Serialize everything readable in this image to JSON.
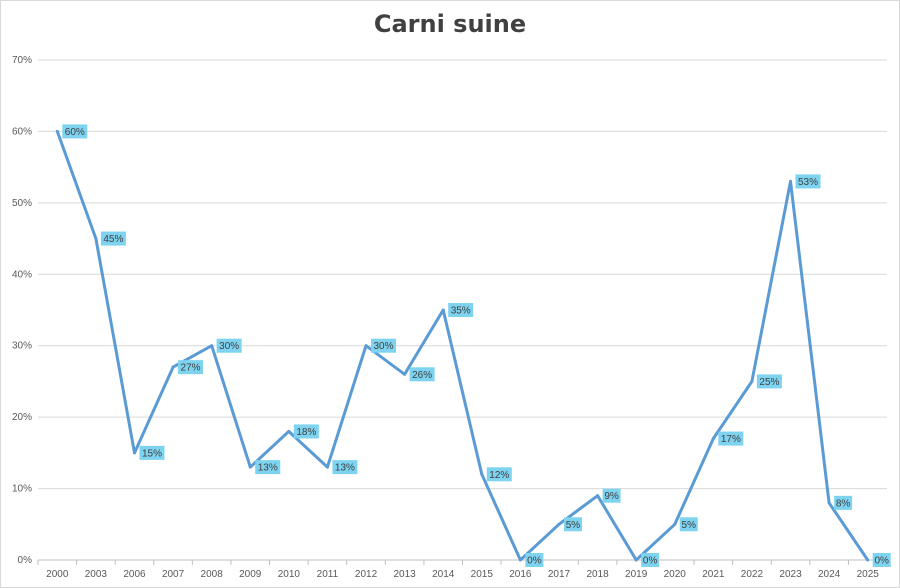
{
  "chart_data": {
    "type": "line",
    "title": "Carni suine",
    "xlabel": "",
    "ylabel": "",
    "ylim": [
      0,
      70
    ],
    "y_ticks": [
      "0%",
      "10%",
      "20%",
      "30%",
      "40%",
      "50%",
      "60%",
      "70%"
    ],
    "y_tick_values": [
      0,
      10,
      20,
      30,
      40,
      50,
      60,
      70
    ],
    "categories": [
      "2000",
      "2003",
      "2006",
      "2007",
      "2008",
      "2009",
      "2010",
      "2011",
      "2012",
      "2013",
      "2014",
      "2015",
      "2016",
      "2017",
      "2018",
      "2019",
      "2020",
      "2021",
      "2022",
      "2023",
      "2024",
      "2025"
    ],
    "series": [
      {
        "values": [
          60,
          45,
          15,
          27,
          30,
          13,
          18,
          13,
          30,
          26,
          35,
          12,
          0,
          5,
          9,
          0,
          5,
          17,
          25,
          53,
          8,
          0
        ],
        "labels": [
          "60%",
          "45%",
          "15%",
          "27%",
          "30%",
          "13%",
          "18%",
          "13%",
          "30%",
          "26%",
          "35%",
          "12%",
          "0%",
          "5%",
          "9%",
          "0%",
          "5%",
          "17%",
          "25%",
          "53%",
          "8%",
          "0%"
        ]
      }
    ],
    "grid": true,
    "line_color": "#5b9bd5",
    "label_bg_color": "#7dd3f0"
  }
}
